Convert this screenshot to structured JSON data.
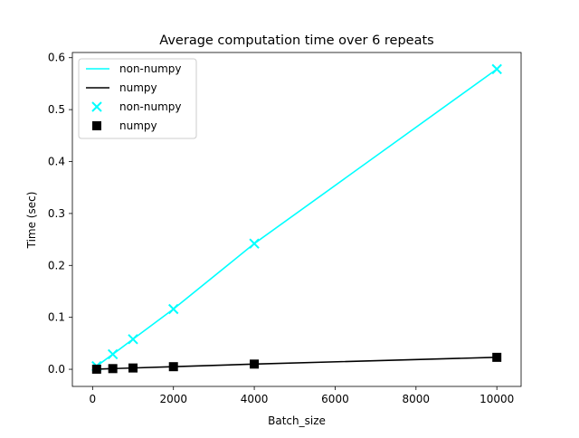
{
  "chart_data": {
    "type": "line",
    "title": "Average computation time over 6 repeats",
    "xlabel": "Batch_size",
    "ylabel": "Time (sec)",
    "xlim": [
      -500,
      10600
    ],
    "ylim": [
      -0.033,
      0.61
    ],
    "x_ticks": [
      0,
      2000,
      4000,
      6000,
      8000,
      10000
    ],
    "x_tick_labels": [
      "0",
      "2000",
      "4000",
      "6000",
      "8000",
      "10000"
    ],
    "y_ticks": [
      0.0,
      0.1,
      0.2,
      0.3,
      0.4,
      0.5,
      0.6
    ],
    "y_tick_labels": [
      "0.0",
      "0.1",
      "0.2",
      "0.3",
      "0.4",
      "0.5",
      "0.6"
    ],
    "x": [
      100,
      500,
      1000,
      2000,
      4000,
      10000
    ],
    "series": [
      {
        "name": "non-numpy",
        "style": "line",
        "color": "#00ffff",
        "values": [
          0.006,
          0.029,
          0.058,
          0.116,
          0.242,
          0.578
        ]
      },
      {
        "name": "numpy",
        "style": "line",
        "color": "#000000",
        "values": [
          0.0002,
          0.0013,
          0.0025,
          0.005,
          0.01,
          0.023
        ]
      },
      {
        "name": "non-numpy",
        "style": "marker-x",
        "color": "#00ffff",
        "values": [
          0.006,
          0.029,
          0.058,
          0.116,
          0.242,
          0.578
        ]
      },
      {
        "name": "numpy",
        "style": "marker-square",
        "color": "#000000",
        "values": [
          0.0002,
          0.0013,
          0.0025,
          0.005,
          0.01,
          0.023
        ]
      }
    ],
    "legend": {
      "placement": "top-left",
      "entries": [
        {
          "label": "non-numpy",
          "kind": "line",
          "color": "#00ffff"
        },
        {
          "label": "numpy",
          "kind": "line",
          "color": "#000000"
        },
        {
          "label": "non-numpy",
          "kind": "marker-x",
          "color": "#00ffff"
        },
        {
          "label": "numpy",
          "kind": "marker-square",
          "color": "#000000"
        }
      ]
    },
    "grid": false
  }
}
